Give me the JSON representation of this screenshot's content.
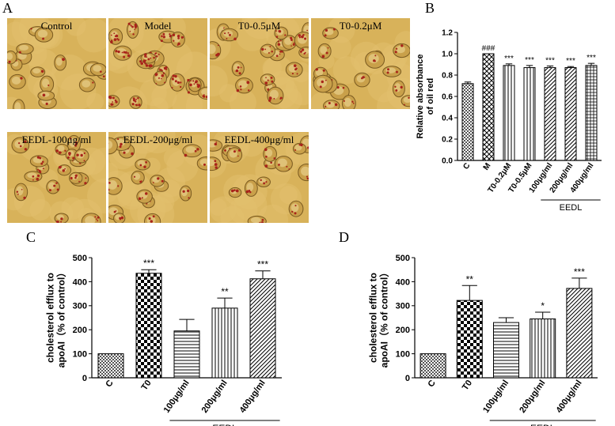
{
  "panels": {
    "a": "A",
    "b": "B",
    "c": "C",
    "d": "D"
  },
  "micrographs": [
    {
      "label": "Control",
      "stain": 0.12
    },
    {
      "label": "Model",
      "stain": 0.95
    },
    {
      "label": "T0-0.5μM",
      "stain": 0.55
    },
    {
      "label": "T0-0.2μM",
      "stain": 0.3
    },
    {
      "label": "EEDL-100μg/ml",
      "stain": 0.4
    },
    {
      "label": "EEDL-200μg/ml",
      "stain": 0.35
    },
    {
      "label": "EEDL-400μg/ml",
      "stain": 0.3
    }
  ],
  "colors": {
    "axis": "#000000",
    "bar_fill": "#ffffff",
    "page_bg": "#ffffff"
  },
  "chart_data": [
    {
      "type": "bar",
      "panel": "B",
      "ylabel": "Relative absorbance of oil red",
      "ylim": [
        0,
        1.2
      ],
      "yticks": [
        "0.0",
        "0.2",
        "0.4",
        "0.6",
        "0.8",
        "1.0",
        "1.2"
      ],
      "categories": [
        "C",
        "M",
        "T0-0.2μM",
        "T0-0.5μM",
        "100μg/ml",
        "200μg/ml",
        "400μg/ml"
      ],
      "values": [
        0.72,
        1.0,
        0.89,
        0.87,
        0.87,
        0.87,
        0.89
      ],
      "errors": [
        0.015,
        0.0,
        0.015,
        0.02,
        0.015,
        0.01,
        0.02
      ],
      "annotations": [
        "",
        "###",
        "***",
        "***",
        "***",
        "***",
        "***"
      ],
      "patterns": [
        "checker",
        "crosshatch",
        "vlines",
        "vlines",
        "diag",
        "diag",
        "grid"
      ],
      "group_label": "EEDL",
      "group_span": [
        4,
        6
      ]
    },
    {
      "type": "bar",
      "panel": "C",
      "ylabel": "cholesterol efflux to apoAI（% of control）",
      "ylim": [
        0,
        500
      ],
      "yticks": [
        "0",
        "100",
        "200",
        "300",
        "400",
        "500"
      ],
      "categories": [
        "C",
        "T0",
        "100μg/ml",
        "200μg/ml",
        "400μg/ml"
      ],
      "values": [
        100,
        435,
        195,
        290,
        412
      ],
      "errors": [
        0,
        15,
        48,
        42,
        33
      ],
      "annotations": [
        "",
        "***",
        "",
        "**",
        "***"
      ],
      "patterns": [
        "checker",
        "checkerbig",
        "hlines",
        "vlines",
        "diag"
      ],
      "group_label": "EEDL",
      "group_span": [
        2,
        4
      ]
    },
    {
      "type": "bar",
      "panel": "D",
      "ylabel": "cholesterol efflux to apoAI（% of control）",
      "ylim": [
        0,
        500
      ],
      "yticks": [
        "0",
        "100",
        "200",
        "300",
        "400",
        "500"
      ],
      "categories": [
        "C",
        "T0",
        "100μg/ml",
        "200μg/ml",
        "400μg/ml"
      ],
      "values": [
        100,
        322,
        230,
        245,
        372
      ],
      "errors": [
        0,
        62,
        20,
        28,
        43
      ],
      "annotations": [
        "",
        "**",
        "",
        "*",
        "***"
      ],
      "patterns": [
        "checker",
        "checkerbig",
        "hlines",
        "vlines",
        "diag"
      ],
      "group_label": "EEDL",
      "group_span": [
        2,
        4
      ]
    }
  ]
}
